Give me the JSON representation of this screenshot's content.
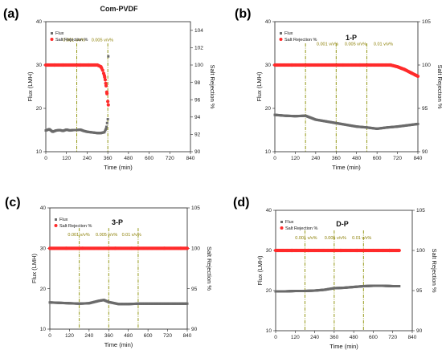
{
  "colors": {
    "flux": "#6b6b6b",
    "rejection": "#ff2b2b",
    "marker_line": "#8a8f00",
    "annotation": "#8a7d00"
  },
  "chart_data": [
    {
      "type": "scatter",
      "panel_label": "(a)",
      "title": "Com-PVDF",
      "xlabel": "Time (min)",
      "ylabel": "Flux (LMH)",
      "y2label": "Salt Rejection %",
      "xlim": [
        0,
        840
      ],
      "xticks": [
        0,
        120,
        240,
        360,
        480,
        600,
        720,
        840
      ],
      "ylim": [
        10,
        40
      ],
      "yticks": [
        10,
        20,
        30,
        40
      ],
      "y2lim": [
        90,
        105
      ],
      "y2ticks": [
        90,
        92,
        94,
        96,
        98,
        100,
        102,
        104
      ],
      "legend": [
        "Flux",
        "Salt Rejection %"
      ],
      "legend_position": "top-left",
      "markers": [
        180,
        360
      ],
      "annotations": [
        {
          "text": "0.001 v/v%",
          "x": 100,
          "y": 35.5
        },
        {
          "text": "0.005 v/v%",
          "x": 265,
          "y": 35.5
        }
      ],
      "series": [
        {
          "name": "Flux",
          "axis": "left",
          "x": [
            0,
            20,
            40,
            60,
            80,
            100,
            120,
            140,
            160,
            180,
            200,
            220,
            240,
            260,
            280,
            300,
            320,
            340,
            350,
            360,
            363
          ],
          "values": [
            14.9,
            15.2,
            14.6,
            14.9,
            15.0,
            14.8,
            15.1,
            14.9,
            15.0,
            15.0,
            15.1,
            14.8,
            14.6,
            14.5,
            14.4,
            14.3,
            14.3,
            14.5,
            15.3,
            17.5,
            32.0
          ]
        },
        {
          "name": "Salt Rejection %",
          "axis": "right",
          "x": [
            0,
            50,
            100,
            150,
            200,
            250,
            300,
            320,
            330,
            340,
            345,
            350,
            355,
            360,
            363
          ],
          "values": [
            100,
            100,
            100,
            100,
            100,
            100,
            100,
            99.8,
            99.4,
            98.8,
            98.3,
            97.6,
            96.7,
            95.8,
            95.4
          ]
        }
      ]
    },
    {
      "type": "scatter",
      "panel_label": "(b)",
      "title": "1-P",
      "xlabel": "Time (min)",
      "ylabel": "Flux (LMH)",
      "y2label": "Salt Rejection %",
      "xlim": [
        0,
        840
      ],
      "xticks": [
        0,
        120,
        240,
        360,
        480,
        600,
        720,
        840
      ],
      "ylim": [
        10,
        40
      ],
      "yticks": [
        10,
        20,
        30,
        40
      ],
      "y2lim": [
        90,
        105
      ],
      "y2ticks": [
        90,
        95,
        100,
        105
      ],
      "legend": [
        "Flux",
        "Salt Rejection %"
      ],
      "legend_position": "top-left",
      "markers": [
        180,
        360,
        540
      ],
      "annotations": [
        {
          "text": "0.001 v/v%",
          "x": 245,
          "y": 34.5
        },
        {
          "text": "0.005 v/v%",
          "x": 410,
          "y": 34.5
        },
        {
          "text": "0.01 v/v%",
          "x": 580,
          "y": 34.5
        }
      ],
      "series": [
        {
          "name": "Flux",
          "axis": "left",
          "x": [
            0,
            60,
            120,
            180,
            240,
            300,
            360,
            420,
            480,
            540,
            600,
            660,
            720,
            780,
            840
          ],
          "values": [
            18.5,
            18.3,
            18.2,
            18.3,
            17.4,
            17.0,
            16.6,
            16.2,
            15.8,
            15.6,
            15.3,
            15.6,
            15.8,
            16.1,
            16.4
          ]
        },
        {
          "name": "Salt Rejection %",
          "axis": "right",
          "x": [
            0,
            100,
            200,
            300,
            400,
            500,
            600,
            680,
            720,
            760,
            800,
            840
          ],
          "values": [
            100,
            100,
            100,
            100,
            100,
            100,
            100,
            100,
            99.8,
            99.5,
            99.1,
            98.7
          ]
        }
      ]
    },
    {
      "type": "scatter",
      "panel_label": "(c)",
      "title": "3-P",
      "xlabel": "Time (min)",
      "ylabel": "Flux (LMH)",
      "y2label": "Salt Rejection %",
      "xlim": [
        0,
        840
      ],
      "xticks": [
        0,
        120,
        240,
        360,
        480,
        600,
        720,
        840
      ],
      "ylim": [
        10,
        40
      ],
      "yticks": [
        10,
        20,
        30,
        40
      ],
      "y2lim": [
        90,
        105
      ],
      "y2ticks": [
        90,
        95,
        100,
        105
      ],
      "legend": [
        "Flux",
        "Salt Rejection %"
      ],
      "legend_position": "top-left",
      "markers": [
        180,
        360,
        540
      ],
      "annotations": [
        {
          "text": "0.001 v/v%",
          "x": 110,
          "y": 33.0
        },
        {
          "text": "0.005 v/v%",
          "x": 280,
          "y": 33.0
        },
        {
          "text": "0.01 v/v%",
          "x": 440,
          "y": 33.0
        }
      ],
      "series": [
        {
          "name": "Flux",
          "axis": "left",
          "x": [
            0,
            60,
            120,
            180,
            240,
            300,
            330,
            360,
            420,
            480,
            540,
            600,
            660,
            720,
            780,
            840
          ],
          "values": [
            16.6,
            16.5,
            16.4,
            16.3,
            16.4,
            17.0,
            17.2,
            16.7,
            16.2,
            16.2,
            16.3,
            16.3,
            16.3,
            16.3,
            16.3,
            16.3
          ]
        },
        {
          "name": "Salt Rejection %",
          "axis": "right",
          "x": [
            0,
            100,
            200,
            300,
            400,
            500,
            600,
            700,
            800,
            840
          ],
          "values": [
            100,
            100,
            100,
            100,
            100,
            100,
            100,
            100,
            100,
            100
          ]
        }
      ]
    },
    {
      "type": "scatter",
      "panel_label": "(d)",
      "title": "D-P",
      "xlabel": "Time (min)",
      "ylabel": "Flux (LMH)",
      "y2label": "Salt Rejection %",
      "xlim": [
        0,
        840
      ],
      "xticks": [
        0,
        120,
        240,
        360,
        480,
        600,
        720,
        840
      ],
      "ylim": [
        10,
        40
      ],
      "yticks": [
        10,
        20,
        30,
        40
      ],
      "y2lim": [
        90,
        105
      ],
      "y2ticks": [
        90,
        95,
        100,
        105
      ],
      "legend": [
        "Flux",
        "Salt Rejection %"
      ],
      "legend_position": "top-left",
      "markers": [
        180,
        360,
        540
      ],
      "annotations": [
        {
          "text": "0.001 v/v%",
          "x": 120,
          "y": 32.8
        },
        {
          "text": "0.005 v/v%",
          "x": 300,
          "y": 32.8
        },
        {
          "text": "0.01 v/v%",
          "x": 470,
          "y": 32.8
        }
      ],
      "series": [
        {
          "name": "Flux",
          "axis": "left",
          "x": [
            0,
            60,
            120,
            180,
            240,
            300,
            360,
            420,
            480,
            540,
            600,
            660,
            720,
            760
          ],
          "values": [
            19.8,
            19.8,
            19.9,
            19.9,
            20.0,
            20.2,
            20.6,
            20.7,
            20.9,
            21.1,
            21.2,
            21.2,
            21.1,
            21.1
          ]
        },
        {
          "name": "Salt Rejection %",
          "axis": "right",
          "x": [
            0,
            100,
            200,
            300,
            400,
            500,
            600,
            700,
            760
          ],
          "values": [
            100,
            100,
            100,
            100,
            100,
            100,
            100,
            100,
            100
          ]
        }
      ]
    }
  ]
}
